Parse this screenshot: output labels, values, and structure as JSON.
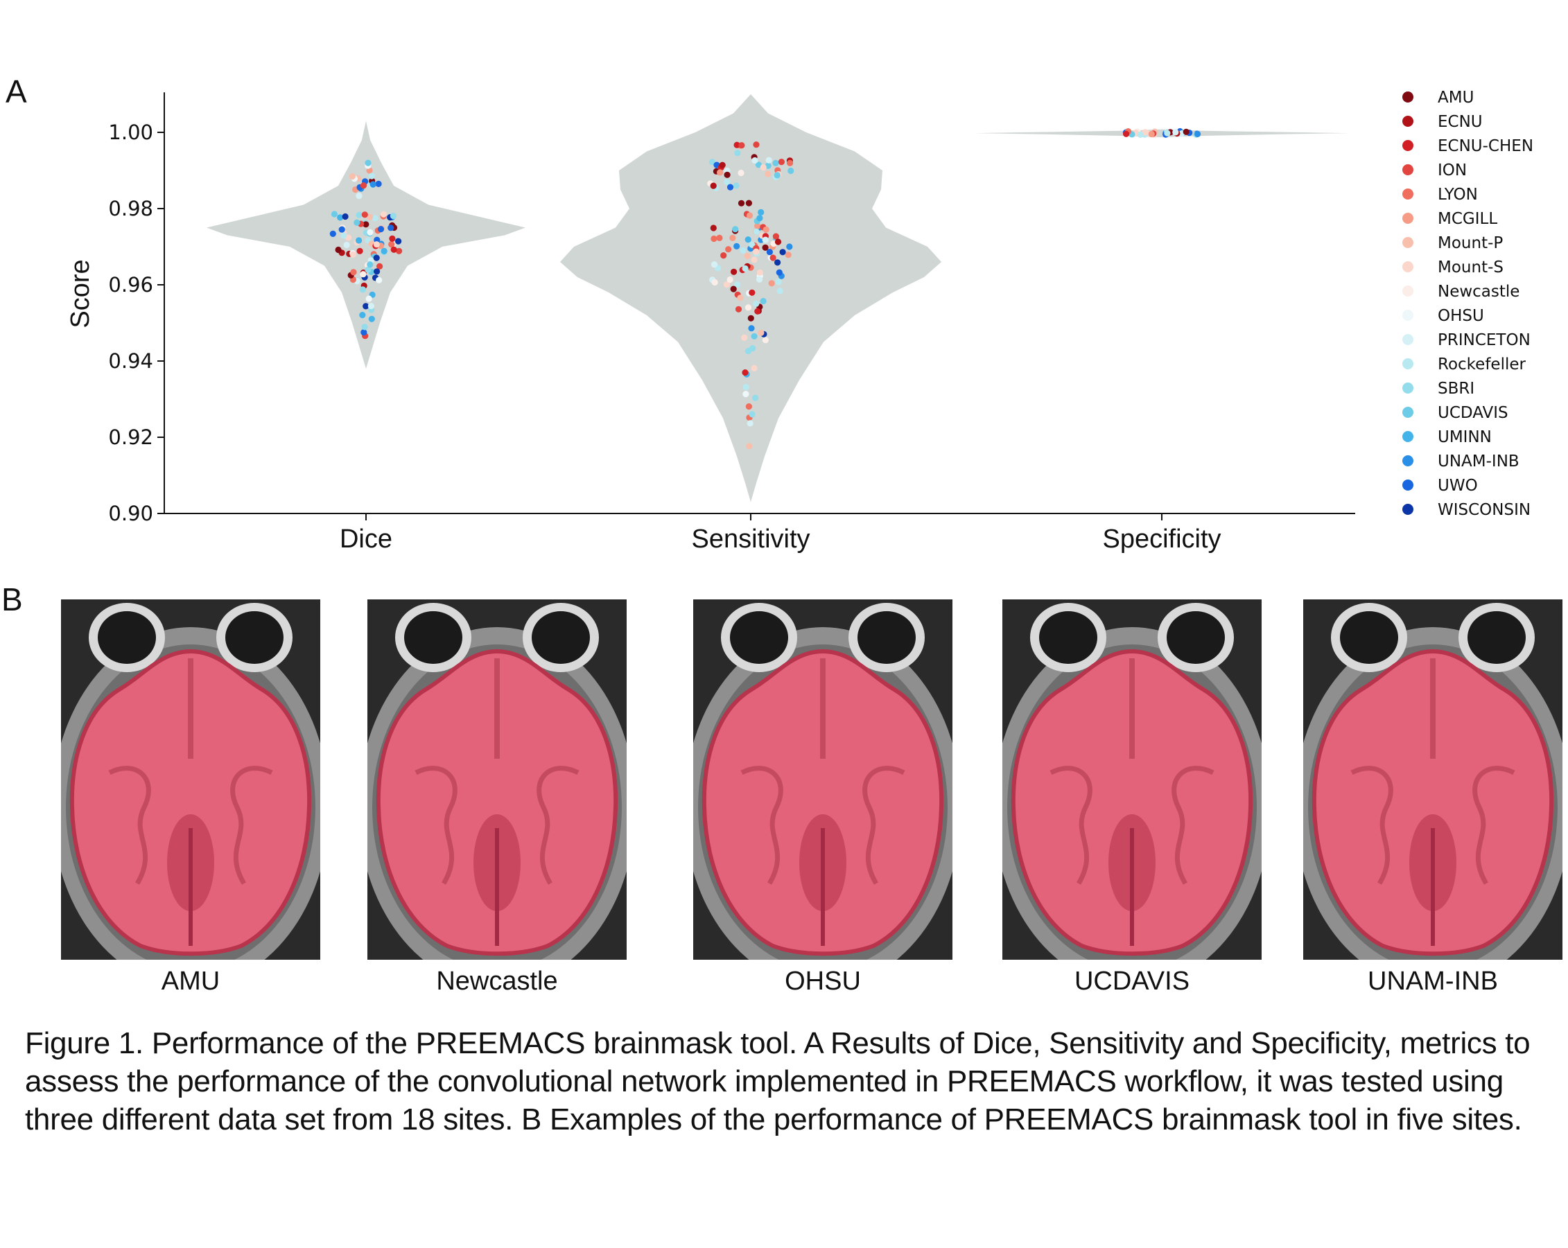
{
  "panels": {
    "a": "A",
    "b": "B"
  },
  "colors": {
    "violin": "#d0d6d4",
    "mask": "#e8627a",
    "sites": {
      "AMU": "#7f0a12",
      "ECNU": "#b01218",
      "ECNU-CHEN": "#d11f25",
      "ION": "#e2453f",
      "LYON": "#ef6e5e",
      "MCGILL": "#f69b86",
      "Mount-P": "#f9bfad",
      "Mount-S": "#fbd7cb",
      "Newcastle": "#fbeee9",
      "OHSU": "#eef7fa",
      "PRINCETON": "#d6f1f6",
      "Rockefeller": "#b8e9f1",
      "SBRI": "#92dceb",
      "UCDAVIS": "#6ccce8",
      "UMINN": "#43b4ea",
      "UNAM-INB": "#2a8fe6",
      "UWO": "#1a66e0",
      "WISCONSIN": "#0c35a8"
    }
  },
  "chart_data": {
    "type": "violin-swarm",
    "ylabel": "Score",
    "ylim": [
      0.9,
      1.01
    ],
    "yticks": [
      "0.90",
      "0.92",
      "0.94",
      "0.96",
      "0.98",
      "1.00"
    ],
    "categories": [
      "Dice",
      "Sensitivity",
      "Specificity"
    ],
    "legend": {
      "position": "right",
      "entries": [
        "AMU",
        "ECNU",
        "ECNU-CHEN",
        "ION",
        "LYON",
        "MCGILL",
        "Mount-P",
        "Mount-S",
        "Newcastle",
        "OHSU",
        "PRINCETON",
        "Rockefeller",
        "SBRI",
        "UCDAVIS",
        "UMINN",
        "UNAM-INB",
        "UWO",
        "WISCONSIN"
      ]
    },
    "distributions": {
      "Dice": {
        "min": 0.938,
        "max": 1.003,
        "mode": 0.974,
        "points": 110
      },
      "Sensitivity": {
        "min": 0.903,
        "max": 1.01,
        "mode": 0.966,
        "points": 150
      },
      "Specificity": {
        "min": 0.9985,
        "max": 1.0005,
        "mode": 0.9997,
        "points": 30
      }
    }
  },
  "sites_panel": [
    "AMU",
    "Newcastle",
    "OHSU",
    "UCDAVIS",
    "UNAM-INB"
  ],
  "caption": "Figure 1. Performance of the PREEMACS brainmask tool. A Results of Dice, Sensitivity and Specificity, metrics to assess the performance of the convolutional network implemented in PREEMACS workflow, it was tested using three different data set from 18 sites. B Examples of the performance of PREEMACS brainmask tool in five sites."
}
